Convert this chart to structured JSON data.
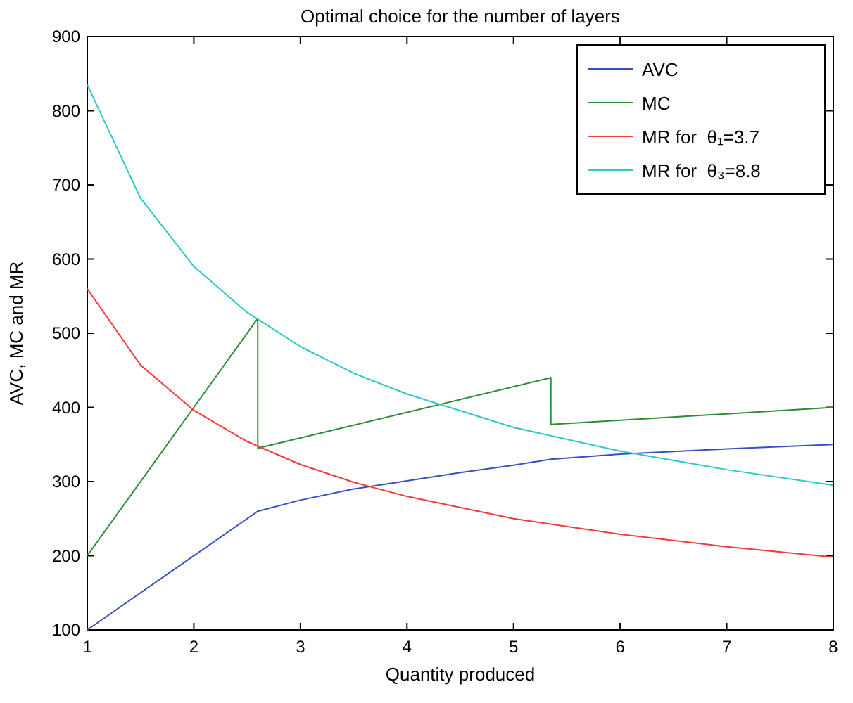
{
  "chart_data": {
    "type": "line",
    "title": "Optimal choice for the number of layers",
    "xlabel": "Quantity produced",
    "ylabel": "AVC, MC and MR",
    "xlim": [
      1,
      8
    ],
    "ylim": [
      100,
      900
    ],
    "xticks": [
      1,
      2,
      3,
      4,
      5,
      6,
      7,
      8
    ],
    "yticks": [
      100,
      200,
      300,
      400,
      500,
      600,
      700,
      800,
      900
    ],
    "grid": false,
    "legend": "top right",
    "marker": "none",
    "line_style": "solid",
    "series": [
      {
        "name": "AVC",
        "color": "#3b4fc4",
        "x": [
          1,
          2.6,
          3,
          3.5,
          4,
          4.5,
          5,
          5.35,
          6,
          7,
          8
        ],
        "values": [
          100,
          260,
          275,
          290,
          301,
          312,
          322,
          330,
          337,
          344,
          350
        ]
      },
      {
        "name": "MC",
        "color": "#2e8b3a",
        "x": [
          1,
          2.6,
          2.6,
          5.35,
          5.35,
          8
        ],
        "values": [
          200,
          520,
          345,
          440,
          377,
          400
        ]
      },
      {
        "name": "MR for  θ₁=3.7",
        "color": "#f03c3c",
        "x": [
          1,
          1.5,
          2,
          2.5,
          3,
          3.5,
          4,
          5,
          6,
          7,
          8
        ],
        "values": [
          560,
          457,
          396,
          354,
          323,
          299,
          280,
          250,
          229,
          212,
          198
        ]
      },
      {
        "name": "MR for  θ₃=8.8",
        "color": "#2ec8c8",
        "x": [
          1,
          1.5,
          2,
          2.5,
          3,
          3.5,
          4,
          5,
          6,
          7,
          8
        ],
        "values": [
          835,
          682,
          590,
          528,
          482,
          446,
          418,
          373,
          341,
          316,
          295
        ]
      }
    ]
  }
}
